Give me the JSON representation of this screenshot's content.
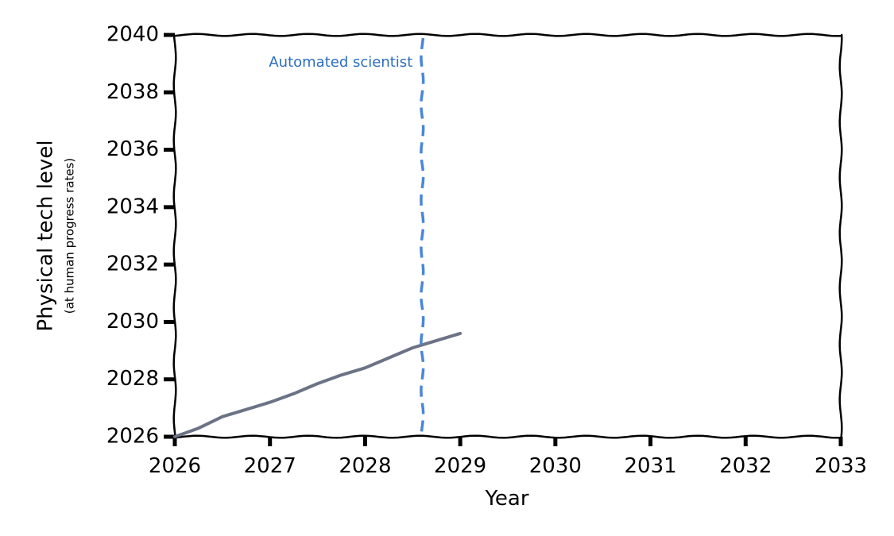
{
  "chart_data": {
    "type": "line",
    "title": "",
    "xlabel": "Year",
    "ylabel": "Physical tech level",
    "ylabel_sub": "(at human progress rates)",
    "xlim": [
      2026,
      2033
    ],
    "ylim": [
      2026,
      2040
    ],
    "x_ticks": [
      2026,
      2027,
      2028,
      2029,
      2030,
      2031,
      2032,
      2033
    ],
    "y_ticks": [
      2026,
      2028,
      2030,
      2032,
      2034,
      2036,
      2038,
      2040
    ],
    "x_tick_labels": [
      "2026",
      "2027",
      "2028",
      "2029",
      "2030",
      "2031",
      "2032",
      "2033"
    ],
    "y_tick_labels": [
      "2026",
      "2028",
      "2030",
      "2032",
      "2034",
      "2036",
      "2038",
      "2040"
    ],
    "grid": false,
    "style": "hand-drawn (xkcd)",
    "series": [
      {
        "x": [
          2026.0,
          2026.25,
          2026.5,
          2026.75,
          2027.0,
          2027.25,
          2027.5,
          2027.75,
          2028.0,
          2028.25,
          2028.5,
          2028.75,
          2029.0
        ],
        "y": [
          2026.0,
          2026.3,
          2026.7,
          2026.95,
          2027.2,
          2027.5,
          2027.85,
          2028.15,
          2028.4,
          2028.75,
          2029.1,
          2029.35,
          2029.6
        ],
        "color": "#6b7385"
      }
    ],
    "vlines": [
      {
        "x": 2028.6,
        "label": "Automated scientist",
        "style": "dashed",
        "color": "#4a86d8",
        "label_color": "#2b6cc4"
      }
    ]
  }
}
